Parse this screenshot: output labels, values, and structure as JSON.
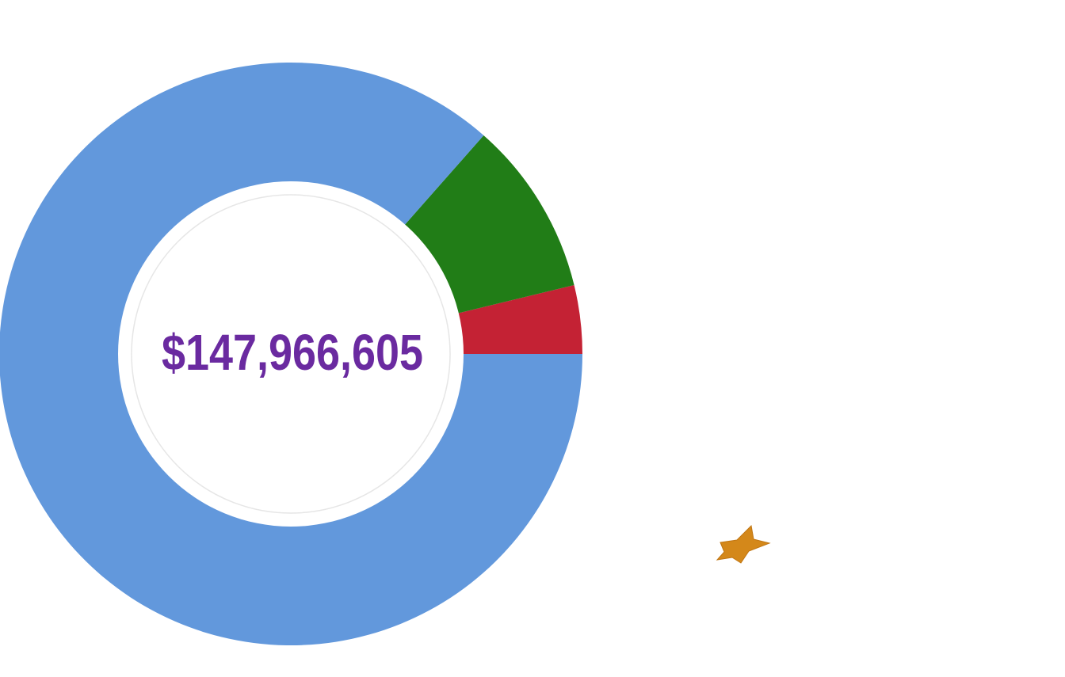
{
  "chart_data": {
    "type": "donut",
    "center_label": "$147,966,605",
    "values": [
      3.8,
      9.7,
      86.5
    ],
    "colors": [
      "#c42234",
      "#217d17",
      "#6298dc"
    ]
  }
}
